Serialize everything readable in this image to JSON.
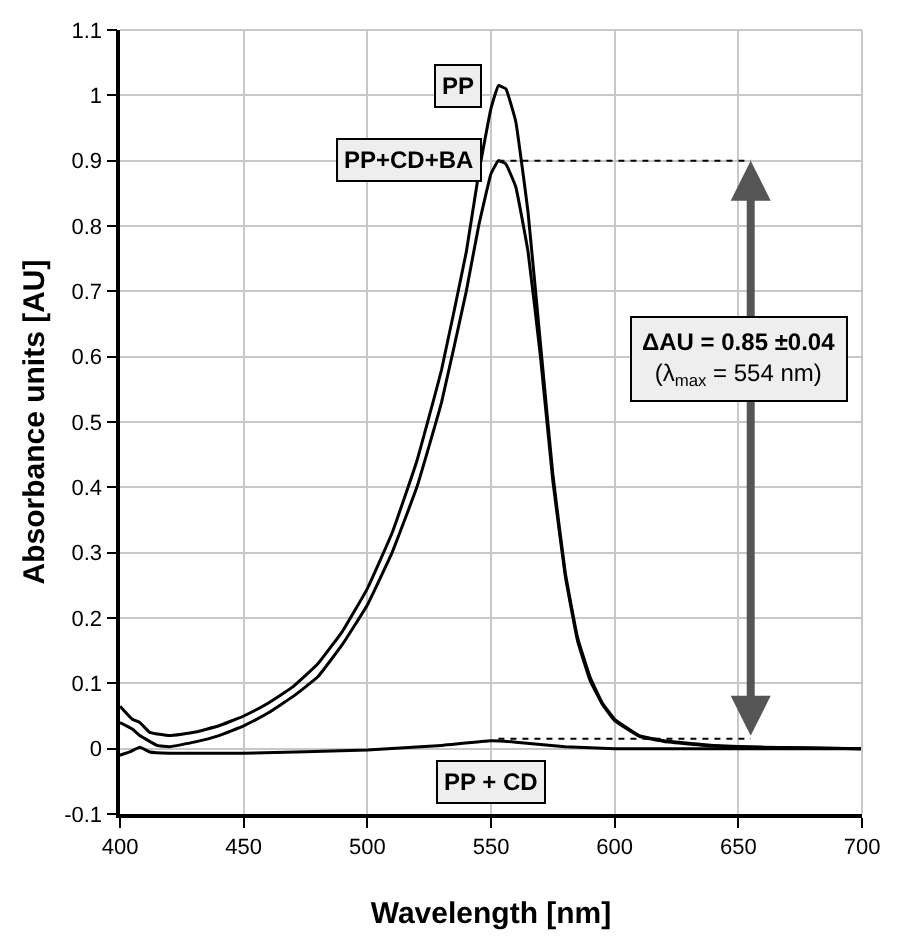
{
  "chart_data": {
    "type": "line",
    "xlabel": "Wavelength [nm]",
    "ylabel": "Absorbance units [AU]",
    "xlim": [
      400,
      700
    ],
    "xticks": [
      400,
      450,
      500,
      550,
      600,
      650,
      700
    ],
    "ylim": [
      -0.1,
      1.1
    ],
    "yticks": [
      -0.1,
      0,
      0.1,
      0.2,
      0.3,
      0.4,
      0.5,
      0.6,
      0.7,
      0.8,
      0.9,
      1,
      1.1
    ],
    "grid": true,
    "legend": false,
    "marker": "none",
    "line_style": "solid",
    "series": [
      {
        "name": "PP",
        "color": "#000000",
        "x": [
          400,
          405,
          408,
          412,
          420,
          430,
          440,
          450,
          460,
          470,
          480,
          490,
          500,
          510,
          520,
          530,
          540,
          545,
          550,
          553,
          556,
          560,
          565,
          570,
          575,
          580,
          585,
          590,
          595,
          600,
          610,
          620,
          640,
          660,
          700
        ],
        "values": [
          0.065,
          0.045,
          0.04,
          0.025,
          0.02,
          0.025,
          0.035,
          0.05,
          0.07,
          0.095,
          0.13,
          0.18,
          0.245,
          0.33,
          0.44,
          0.58,
          0.76,
          0.88,
          0.98,
          1.015,
          1.01,
          0.96,
          0.82,
          0.62,
          0.42,
          0.27,
          0.17,
          0.11,
          0.07,
          0.045,
          0.02,
          0.012,
          0.005,
          0.002,
          0
        ]
      },
      {
        "name": "PP+CD+BA",
        "color": "#000000",
        "x": [
          400,
          405,
          408,
          415,
          420,
          430,
          440,
          450,
          460,
          470,
          480,
          490,
          500,
          510,
          520,
          530,
          540,
          545,
          550,
          553,
          556,
          560,
          565,
          570,
          575,
          580,
          585,
          590,
          595,
          600,
          610,
          620,
          640,
          660,
          700
        ],
        "values": [
          0.04,
          0.03,
          0.02,
          0.005,
          0.003,
          0.01,
          0.02,
          0.035,
          0.055,
          0.08,
          0.11,
          0.16,
          0.22,
          0.3,
          0.4,
          0.53,
          0.7,
          0.8,
          0.88,
          0.9,
          0.895,
          0.86,
          0.76,
          0.6,
          0.41,
          0.265,
          0.165,
          0.105,
          0.068,
          0.043,
          0.019,
          0.011,
          0.004,
          0.002,
          0
        ]
      },
      {
        "name": "PP + CD",
        "color": "#000000",
        "x": [
          400,
          404,
          408,
          412,
          420,
          450,
          500,
          530,
          550,
          560,
          580,
          600,
          650,
          700
        ],
        "values": [
          -0.01,
          -0.005,
          0.002,
          -0.005,
          -0.007,
          -0.007,
          -0.002,
          0.005,
          0.012,
          0.01,
          0.003,
          0.0,
          0.0,
          0.0
        ]
      },
      {
        "color": "#000000",
        "line_style": "dotted",
        "x": [
          553,
          655
        ],
        "values": [
          0.9,
          0.9
        ]
      },
      {
        "color": "#000000",
        "line_style": "dotted",
        "x": [
          553,
          655
        ],
        "values": [
          0.015,
          0.015
        ]
      }
    ],
    "annotations": [
      "ΔAU = 0.85 ±0.04\n(λ$_{max}$ = 554 nm)"
    ]
  }
}
